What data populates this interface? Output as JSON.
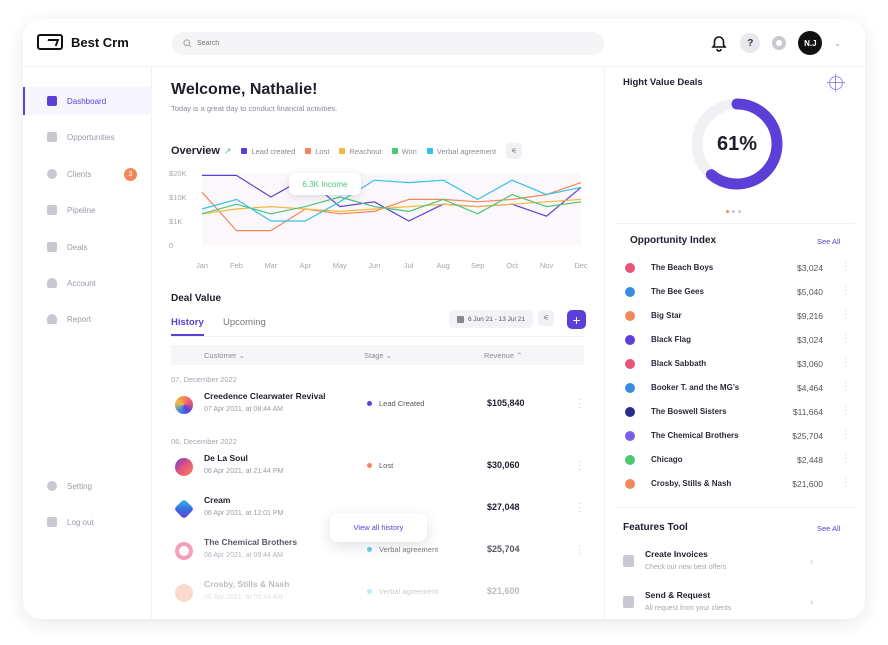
{
  "app": {
    "name": "Best Crm"
  },
  "search": {
    "placeholder": "Search"
  },
  "user": {
    "initials": "N.J"
  },
  "header": {
    "help": "?"
  },
  "sidebar": {
    "items": [
      {
        "label": "Dashboard",
        "icon": "grid-icon",
        "active": true
      },
      {
        "label": "Opportunities",
        "icon": "document-icon"
      },
      {
        "label": "Clients",
        "icon": "chat-icon",
        "badge": "3"
      },
      {
        "label": "Pipeline",
        "icon": "pipeline-icon"
      },
      {
        "label": "Deals",
        "icon": "chart-icon"
      },
      {
        "label": "Account",
        "icon": "user-icon"
      },
      {
        "label": "Report",
        "icon": "report-icon"
      }
    ],
    "bottom": [
      {
        "label": "Setting",
        "icon": "gear-icon"
      },
      {
        "label": "Log out",
        "icon": "logout-icon"
      }
    ]
  },
  "welcome": {
    "title": "Welcome, Nathalie!",
    "subtitle": "Today is a great day to conduct financial activities."
  },
  "overview": {
    "title": "Overview",
    "legend": [
      {
        "name": "Lead created",
        "color": "#5b3fd6"
      },
      {
        "name": "Lost",
        "color": "#f2875a"
      },
      {
        "name": "Reachout",
        "color": "#f5b942"
      },
      {
        "name": "Won",
        "color": "#4cc774"
      },
      {
        "name": "Verbal agreement",
        "color": "#30c3e8"
      }
    ],
    "tooltip": "6.3K Income"
  },
  "chart_data": {
    "type": "line",
    "categories": [
      "Jan",
      "Feb",
      "Mar",
      "Apr",
      "May",
      "Jun",
      "Jul",
      "Aug",
      "Sep",
      "Oct",
      "Nov",
      "Dec"
    ],
    "y_ticks": [
      "$20K",
      "$10K",
      "$1K",
      "0"
    ],
    "ylim": [
      0,
      3
    ],
    "series": [
      {
        "name": "Lead created",
        "color": "#5b3fd6",
        "values": [
          2.9,
          2.9,
          2.0,
          2.8,
          1.6,
          1.8,
          1.0,
          1.7,
          1.6,
          1.7,
          1.2,
          2.4
        ]
      },
      {
        "name": "Lost",
        "color": "#f2875a",
        "values": [
          2.2,
          0.6,
          0.6,
          1.5,
          1.3,
          1.4,
          1.9,
          1.9,
          1.8,
          1.9,
          2.1,
          2.6
        ]
      },
      {
        "name": "Reachout",
        "color": "#f5b942",
        "values": [
          1.3,
          1.5,
          1.6,
          1.5,
          1.4,
          1.5,
          1.6,
          1.7,
          1.6,
          1.7,
          1.8,
          1.9
        ]
      },
      {
        "name": "Won",
        "color": "#4cc774",
        "values": [
          1.3,
          1.7,
          1.3,
          1.6,
          2.0,
          1.6,
          1.4,
          1.9,
          1.3,
          2.1,
          1.6,
          1.8
        ]
      },
      {
        "name": "Verbal agreement",
        "color": "#30c3e8",
        "values": [
          1.5,
          1.9,
          1.0,
          1.0,
          1.8,
          2.7,
          2.6,
          2.7,
          1.9,
          2.7,
          2.1,
          2.4
        ]
      }
    ]
  },
  "deals": {
    "title": "Deal Value",
    "tabs": [
      "History",
      "Upcoming"
    ],
    "date_range": "6 Jun 21 - 13 Jul 21",
    "columns": [
      "Customer",
      "Stage",
      "Revenue"
    ],
    "groups": [
      {
        "date": "07, December 2022"
      },
      {
        "date": "06, December 2022"
      }
    ],
    "rows": [
      {
        "name": "Creedence Clearwater Revival",
        "time": "07 Apr 2021, at 08:44 AM",
        "stage": "Lead Created",
        "stage_color": "#5b3fd6",
        "revenue": "$105,840",
        "logo_color": "#f2875a"
      },
      {
        "name": "De La Soul",
        "time": "06 Apr 2021, at 21:44 PM",
        "stage": "Lost",
        "stage_color": "#f2875a",
        "revenue": "$30,060",
        "logo_color": "#5b3fd6"
      },
      {
        "name": "Cream",
        "time": "06 Apr 2021, at 12:01 PM",
        "stage": "",
        "stage_color": "#ffffff",
        "revenue": "$27,048",
        "logo_color": "#3b6fe0"
      },
      {
        "name": "The Chemical Brothers",
        "time": "06 Apr 2021, at 09:44 AM",
        "stage": "Verbal agreement",
        "stage_color": "#30c3e8",
        "revenue": "$25,704",
        "logo_color": "#f47fa8"
      },
      {
        "name": "Crosby, Stills & Nash",
        "time": "06 Apr 2021, at 09:44 AM",
        "stage": "Verbal agreement",
        "stage_color": "#30c3e8",
        "revenue": "$21,600",
        "logo_color": "#f2875a"
      }
    ],
    "view_all": "View all history"
  },
  "high_value": {
    "title": "Hight Value Deals",
    "percent": "61%",
    "fraction": 0.61,
    "color": "#5b3fd6"
  },
  "opportunity": {
    "title": "Opportunity Index",
    "see_all": "See All",
    "items": [
      {
        "name": "The Beach Boys",
        "value": "$3,024",
        "logo_color": "#e8547a"
      },
      {
        "name": "The Bee Gees",
        "value": "$5,040",
        "logo_color": "#3b8be0"
      },
      {
        "name": "Big Star",
        "value": "$9,216",
        "logo_color": "#f2875a"
      },
      {
        "name": "Black Flag",
        "value": "$3,024",
        "logo_color": "#5b3fd6"
      },
      {
        "name": "Black Sabbath",
        "value": "$3,060",
        "logo_color": "#e8547a"
      },
      {
        "name": "Booker T. and the MG’s",
        "value": "$4,464",
        "logo_color": "#3b8be0"
      },
      {
        "name": "The Boswell Sisters",
        "value": "$11,664",
        "logo_color": "#2b2a8c"
      },
      {
        "name": "The Chemical Brothers",
        "value": "$25,704",
        "logo_color": "#7b5fe6"
      },
      {
        "name": "Chicago",
        "value": "$2,448",
        "logo_color": "#4cc774"
      },
      {
        "name": "Crosby, Stills & Nash",
        "value": "$21,600",
        "logo_color": "#f2875a"
      }
    ]
  },
  "features": {
    "title": "Features Tool",
    "see_all": "See All",
    "items": [
      {
        "name": "Create Invoices",
        "desc": "Check our new best offers"
      },
      {
        "name": "Send & Request",
        "desc": "All request from your clients"
      }
    ]
  }
}
